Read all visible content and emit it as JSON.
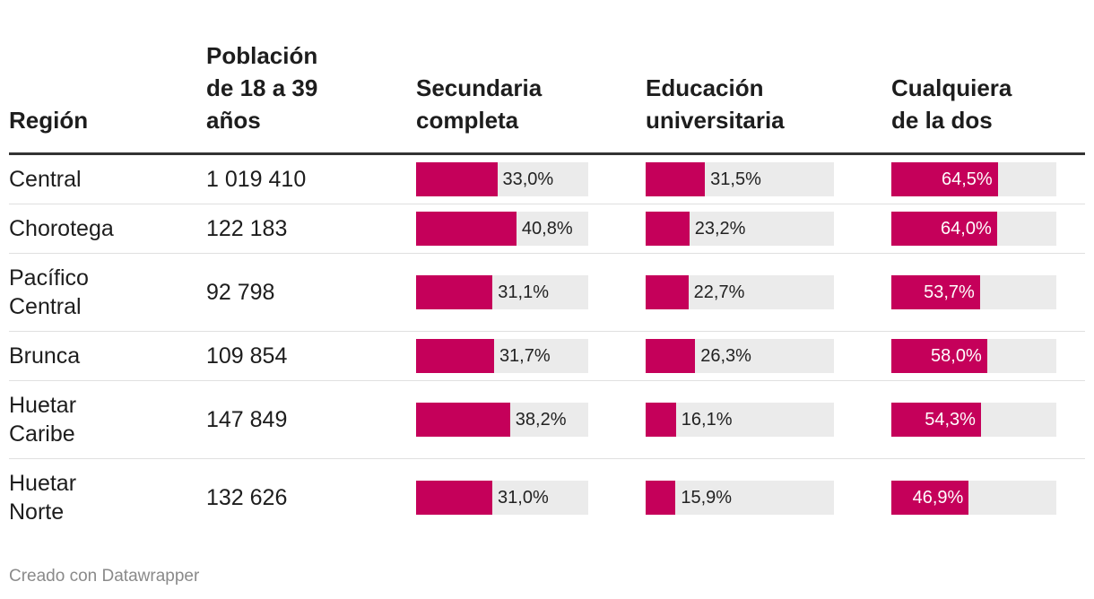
{
  "chart_data": {
    "type": "table",
    "columns": [
      "Región",
      "Población\nde 18 a 39\naños",
      "Secundaria\ncompleta",
      "Educación\nuniversitaria",
      "Cualquiera\nde la dos"
    ],
    "rows": [
      {
        "region": "Central",
        "poblacion": "1 019 410",
        "secundaria": 33.0,
        "secundaria_label": "33,0%",
        "universitaria": 31.5,
        "universitaria_label": "31,5%",
        "cualquiera": 64.5,
        "cualquiera_label": "64,5%"
      },
      {
        "region": "Chorotega",
        "poblacion": "122 183",
        "secundaria": 40.8,
        "secundaria_label": "40,8%",
        "universitaria": 23.2,
        "universitaria_label": "23,2%",
        "cualquiera": 64.0,
        "cualquiera_label": "64,0%"
      },
      {
        "region": "Pacífico\nCentral",
        "poblacion": "92 798",
        "secundaria": 31.1,
        "secundaria_label": "31,1%",
        "universitaria": 22.7,
        "universitaria_label": "22,7%",
        "cualquiera": 53.7,
        "cualquiera_label": "53,7%"
      },
      {
        "region": "Brunca",
        "poblacion": "109 854",
        "secundaria": 31.7,
        "secundaria_label": "31,7%",
        "universitaria": 26.3,
        "universitaria_label": "26,3%",
        "cualquiera": 58.0,
        "cualquiera_label": "58,0%"
      },
      {
        "region": "Huetar\nCaribe",
        "poblacion": "147 849",
        "secundaria": 38.2,
        "secundaria_label": "38,2%",
        "universitaria": 16.1,
        "universitaria_label": "16,1%",
        "cualquiera": 54.3,
        "cualquiera_label": "54,3%"
      },
      {
        "region": "Huetar\nNorte",
        "poblacion": "132 626",
        "secundaria": 31.0,
        "secundaria_label": "31,0%",
        "universitaria": 15.9,
        "universitaria_label": "15,9%",
        "cualquiera": 46.9,
        "cualquiera_label": "46,9%"
      }
    ],
    "bar_color": "#c5005a",
    "track_color": "#ebebeb"
  },
  "footer": {
    "credit": "Creado con Datawrapper"
  }
}
